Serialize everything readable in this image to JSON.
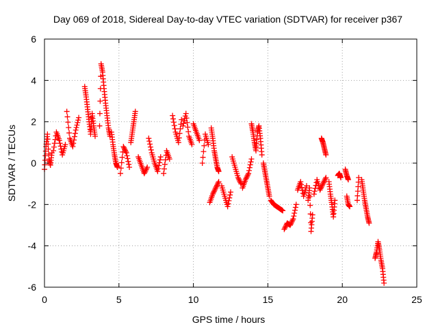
{
  "chart_data": {
    "type": "scatter",
    "title": "Day 069 of 2018, Sidereal Day-to-day VTEC variation (SDTVAR) for receiver p367",
    "xlabel": "GPS time / hours",
    "ylabel": "SDTVAR / TECUs",
    "xlim": [
      0,
      25
    ],
    "ylim": [
      -6,
      6
    ],
    "xticks": [
      0,
      5,
      10,
      15,
      20,
      25
    ],
    "yticks": [
      -6,
      -4,
      -2,
      0,
      2,
      4,
      6
    ],
    "xtick_labels": [
      "0",
      "5",
      "10",
      "15",
      "20",
      "25"
    ],
    "ytick_labels": [
      "-6",
      "-4",
      "-2",
      "0",
      "2",
      "4",
      "6"
    ],
    "grid": true,
    "marker": "plus",
    "series": [
      {
        "name": "SDTVAR",
        "color": "#ff0000",
        "segments": [
          {
            "x": [
              0.0,
              0.1,
              0.2,
              0.3,
              0.4,
              0.5
            ],
            "y": [
              -0.3,
              0.8,
              1.4,
              0.2,
              -0.1,
              0.5
            ]
          },
          {
            "x": [
              0.6,
              0.8,
              1.0,
              1.2,
              1.4
            ],
            "y": [
              0.6,
              1.5,
              1.1,
              0.4,
              0.9
            ]
          },
          {
            "x": [
              1.5,
              1.7,
              1.9,
              2.1,
              2.3
            ],
            "y": [
              2.5,
              1.2,
              0.8,
              1.6,
              2.2
            ]
          },
          {
            "x": [
              2.7,
              2.8,
              2.9,
              3.0,
              3.1,
              3.2,
              3.3,
              3.4
            ],
            "y": [
              3.7,
              3.2,
              2.6,
              2.0,
              1.4,
              2.4,
              1.8,
              1.3
            ]
          },
          {
            "x": [
              3.7,
              3.8,
              3.9,
              4.0,
              4.1,
              4.2,
              4.3,
              4.4
            ],
            "y": [
              1.8,
              4.8,
              4.4,
              3.6,
              2.9,
              2.3,
              1.7,
              1.3
            ]
          },
          {
            "x": [
              4.5,
              4.6,
              4.7,
              4.8,
              4.9
            ],
            "y": [
              1.5,
              0.9,
              0.4,
              0.0,
              -0.2
            ]
          },
          {
            "x": [
              5.1,
              5.3,
              5.5,
              5.7
            ],
            "y": [
              -0.5,
              0.8,
              0.5,
              -0.2
            ]
          },
          {
            "x": [
              5.8,
              5.9,
              6.0,
              6.1
            ],
            "y": [
              1.0,
              1.5,
              2.0,
              2.5
            ]
          },
          {
            "x": [
              6.3,
              6.5,
              6.7,
              6.9
            ],
            "y": [
              0.3,
              -0.1,
              -0.5,
              -0.2
            ]
          },
          {
            "x": [
              7.0,
              7.2,
              7.4,
              7.6,
              7.8
            ],
            "y": [
              1.2,
              0.5,
              0.0,
              -0.4,
              0.3
            ]
          },
          {
            "x": [
              8.0,
              8.2,
              8.4
            ],
            "y": [
              -0.5,
              0.6,
              0.2
            ]
          },
          {
            "x": [
              8.6,
              8.8,
              9.0,
              9.2
            ],
            "y": [
              2.3,
              1.5,
              1.0,
              2.1
            ]
          },
          {
            "x": [
              9.3,
              9.5,
              9.7,
              9.9
            ],
            "y": [
              1.8,
              2.4,
              1.3,
              0.9
            ]
          },
          {
            "x": [
              10.0,
              10.2,
              10.4
            ],
            "y": [
              1.9,
              1.5,
              1.1
            ]
          },
          {
            "x": [
              10.6,
              10.8,
              11.0
            ],
            "y": [
              0.0,
              1.4,
              0.9
            ]
          },
          {
            "x": [
              11.2,
              11.3,
              11.4,
              11.5,
              11.6,
              11.7
            ],
            "y": [
              1.7,
              1.2,
              0.6,
              0.2,
              -0.2,
              -0.4
            ]
          },
          {
            "x": [
              11.1,
              11.3,
              11.5,
              11.7
            ],
            "y": [
              -1.9,
              -1.5,
              -1.2,
              -0.9
            ]
          },
          {
            "x": [
              11.9,
              12.1,
              12.3,
              12.5
            ],
            "y": [
              -1.1,
              -1.6,
              -2.1,
              -1.4
            ]
          },
          {
            "x": [
              12.6,
              12.8,
              13.0,
              13.2
            ],
            "y": [
              0.3,
              -0.2,
              -0.7,
              -1.0
            ]
          },
          {
            "x": [
              13.3,
              13.5,
              13.7,
              13.9
            ],
            "y": [
              -1.2,
              -0.8,
              -0.5,
              0.2
            ]
          },
          {
            "x": [
              13.9,
              14.0,
              14.1,
              14.2,
              14.3,
              14.4,
              14.5,
              14.6
            ],
            "y": [
              1.9,
              1.5,
              1.0,
              0.6,
              1.5,
              1.8,
              1.2,
              0.4
            ]
          },
          {
            "x": [
              14.7,
              14.8,
              14.9,
              15.0,
              15.1
            ],
            "y": [
              0.0,
              -0.4,
              -0.8,
              -1.2,
              -1.6
            ]
          },
          {
            "x": [
              15.2,
              15.4,
              15.6,
              15.8,
              16.0
            ],
            "y": [
              -1.8,
              -2.0,
              -2.1,
              -2.2,
              -2.3
            ]
          },
          {
            "x": [
              16.1,
              16.3,
              16.5,
              16.7,
              16.9
            ],
            "y": [
              -3.2,
              -2.9,
              -3.0,
              -2.7,
              -2.0
            ]
          },
          {
            "x": [
              17.0,
              17.2,
              17.4,
              17.6
            ],
            "y": [
              -1.3,
              -0.9,
              -1.6,
              -1.1
            ]
          },
          {
            "x": [
              17.7,
              17.8,
              17.9,
              18.0
            ],
            "y": [
              -1.8,
              -1.2,
              -3.3,
              -2.5
            ]
          },
          {
            "x": [
              18.1,
              18.3,
              18.5,
              18.7,
              18.9
            ],
            "y": [
              -1.5,
              -0.8,
              -1.3,
              -1.0,
              -0.7
            ]
          },
          {
            "x": [
              18.6,
              18.7,
              18.8,
              18.9
            ],
            "y": [
              1.2,
              1.0,
              0.7,
              0.4
            ]
          },
          {
            "x": [
              19.1,
              19.2,
              19.3,
              19.4,
              19.5
            ],
            "y": [
              -0.9,
              -1.5,
              -2.0,
              -2.6,
              -1.8
            ]
          },
          {
            "x": [
              19.7,
              19.8,
              19.9
            ],
            "y": [
              -0.6,
              -0.5,
              -0.7
            ]
          },
          {
            "x": [
              20.2,
              20.3,
              20.4
            ],
            "y": [
              -0.3,
              -0.6,
              -0.8
            ]
          },
          {
            "x": [
              20.3,
              20.4,
              20.5
            ],
            "y": [
              -1.6,
              -2.0,
              -2.1
            ]
          },
          {
            "x": [
              21.0,
              21.1
            ],
            "y": [
              -1.8,
              -0.7
            ]
          },
          {
            "x": [
              21.3,
              21.4,
              21.5,
              21.6,
              21.7,
              21.8
            ],
            "y": [
              -0.8,
              -1.3,
              -1.8,
              -2.2,
              -2.6,
              -2.9
            ]
          },
          {
            "x": [
              22.2,
              22.3,
              22.4,
              22.5,
              22.6,
              22.7,
              22.8
            ],
            "y": [
              -4.6,
              -4.3,
              -3.8,
              -4.2,
              -4.7,
              -5.1,
              -5.8
            ]
          }
        ]
      }
    ]
  }
}
